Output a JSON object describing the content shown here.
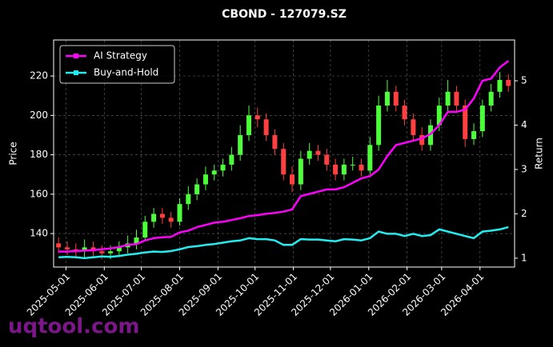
{
  "chart_data": {
    "type": "candlestick",
    "title": "CBOND - 127079.SZ",
    "ylabel": "Price",
    "y2label": "Return",
    "watermark": "uqtool.com",
    "up_color": "#4cff3a",
    "down_color": "#ff4040",
    "grid": true,
    "legend": "upper left",
    "x": [
      "2025-04-25",
      "2025-05-02",
      "2025-05-09",
      "2025-05-16",
      "2025-05-23",
      "2025-05-30",
      "2025-06-06",
      "2025-06-13",
      "2025-06-20",
      "2025-06-27",
      "2025-07-04",
      "2025-07-11",
      "2025-07-18",
      "2025-07-25",
      "2025-08-01",
      "2025-08-08",
      "2025-08-15",
      "2025-08-22",
      "2025-08-29",
      "2025-09-05",
      "2025-09-12",
      "2025-09-19",
      "2025-09-26",
      "2025-10-03",
      "2025-10-10",
      "2025-10-17",
      "2025-10-24",
      "2025-10-31",
      "2025-11-07",
      "2025-11-14",
      "2025-11-21",
      "2025-11-28",
      "2025-12-05",
      "2025-12-12",
      "2025-12-19",
      "2025-12-26",
      "2026-01-02",
      "2026-01-09",
      "2026-01-16",
      "2026-01-23",
      "2026-01-30",
      "2026-02-06",
      "2026-02-13",
      "2026-02-20",
      "2026-02-27",
      "2026-03-06",
      "2026-03-13",
      "2026-03-20",
      "2026-03-27",
      "2026-04-03",
      "2026-04-10",
      "2026-04-17",
      "2026-04-24"
    ],
    "open": [
      135,
      133,
      132,
      131,
      133,
      131,
      130,
      131,
      133,
      135,
      138,
      146,
      150,
      148,
      146,
      155,
      160,
      165,
      170,
      172,
      175,
      180,
      190,
      200,
      198,
      190,
      183,
      170,
      165,
      178,
      182,
      180,
      175,
      170,
      175,
      175,
      172,
      185,
      205,
      212,
      205,
      198,
      190,
      185,
      195,
      205,
      212,
      205,
      188,
      192,
      205,
      212,
      218
    ],
    "high": [
      138,
      136,
      135,
      137,
      136,
      134,
      134,
      136,
      139,
      142,
      149,
      153,
      153,
      151,
      158,
      164,
      168,
      174,
      175,
      178,
      184,
      195,
      205,
      204,
      201,
      193,
      186,
      174,
      182,
      186,
      185,
      183,
      178,
      178,
      179,
      178,
      189,
      210,
      218,
      215,
      208,
      201,
      194,
      198,
      209,
      218,
      215,
      208,
      196,
      208,
      216,
      222,
      221
    ],
    "low": [
      130,
      129,
      128,
      128,
      128,
      127,
      127,
      128,
      130,
      132,
      136,
      143,
      145,
      143,
      144,
      152,
      157,
      162,
      167,
      169,
      172,
      177,
      187,
      194,
      187,
      180,
      167,
      161,
      162,
      175,
      177,
      172,
      167,
      167,
      172,
      169,
      170,
      182,
      202,
      202,
      195,
      187,
      182,
      182,
      192,
      202,
      202,
      184,
      185,
      189,
      202,
      209,
      212
    ],
    "close": [
      133,
      132,
      131,
      133,
      131,
      130,
      131,
      133,
      135,
      138,
      146,
      150,
      148,
      146,
      155,
      160,
      165,
      170,
      172,
      175,
      180,
      190,
      200,
      198,
      190,
      183,
      170,
      165,
      178,
      182,
      180,
      175,
      170,
      175,
      175,
      172,
      185,
      205,
      212,
      205,
      198,
      190,
      185,
      195,
      205,
      212,
      205,
      188,
      192,
      205,
      212,
      218,
      215
    ],
    "series": [
      {
        "name": "AI Strategy",
        "color": "#ff00ff",
        "axis": "y2",
        "values": [
          1.15,
          1.15,
          1.16,
          1.17,
          1.18,
          1.2,
          1.22,
          1.25,
          1.3,
          1.32,
          1.4,
          1.45,
          1.47,
          1.48,
          1.58,
          1.62,
          1.7,
          1.75,
          1.8,
          1.82,
          1.86,
          1.9,
          1.95,
          1.97,
          2.0,
          2.02,
          2.05,
          2.1,
          2.4,
          2.45,
          2.5,
          2.55,
          2.55,
          2.6,
          2.7,
          2.8,
          2.85,
          3.0,
          3.3,
          3.55,
          3.6,
          3.65,
          3.7,
          3.8,
          4.0,
          4.3,
          4.3,
          4.35,
          4.6,
          5.0,
          5.05,
          5.3,
          5.45
        ]
      },
      {
        "name": "Buy-and-Hold",
        "color": "#22eef2",
        "axis": "y2",
        "values": [
          1.02,
          1.03,
          1.02,
          1.0,
          1.02,
          1.04,
          1.03,
          1.05,
          1.08,
          1.1,
          1.13,
          1.15,
          1.14,
          1.16,
          1.2,
          1.25,
          1.27,
          1.3,
          1.32,
          1.35,
          1.38,
          1.4,
          1.45,
          1.43,
          1.43,
          1.4,
          1.3,
          1.3,
          1.43,
          1.42,
          1.42,
          1.4,
          1.38,
          1.43,
          1.42,
          1.4,
          1.45,
          1.6,
          1.55,
          1.55,
          1.5,
          1.55,
          1.5,
          1.52,
          1.65,
          1.6,
          1.55,
          1.5,
          1.45,
          1.6,
          1.62,
          1.65,
          1.7
        ]
      }
    ],
    "xlim": [
      "2025-04-21",
      "2026-04-29"
    ],
    "xticks": [
      "2025-05-01",
      "2025-06-01",
      "2025-07-01",
      "2025-08-01",
      "2025-09-01",
      "2025-10-01",
      "2025-11-01",
      "2025-12-01",
      "2026-01-01",
      "2026-02-01",
      "2026-03-01",
      "2026-04-01"
    ],
    "ylim": [
      123,
      238.3
    ],
    "yticks": [
      140,
      160,
      180,
      200,
      220
    ],
    "y2lim": [
      0.8,
      5.92
    ],
    "y2ticks": [
      1,
      2,
      3,
      4,
      5
    ]
  }
}
